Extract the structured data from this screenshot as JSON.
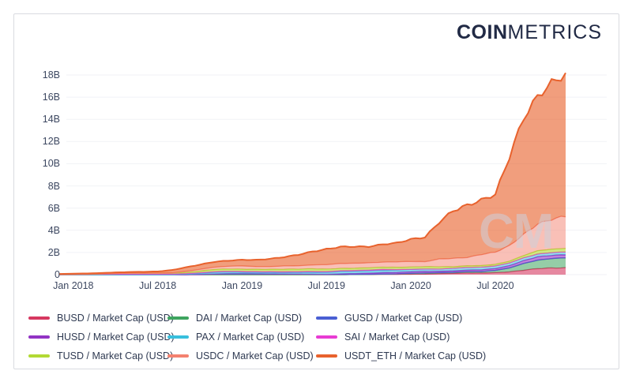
{
  "logo": {
    "bold": "COIN",
    "light": "METRICS"
  },
  "watermark_text": "CM",
  "colors": {
    "axis_text": "#3d4861",
    "grid": "#f1f2f6",
    "frame_border": "#d9dbe0",
    "logo_text": "#212a45",
    "legend_text": "#2f3a52"
  },
  "chart_data": {
    "type": "area",
    "stacked": true,
    "title": "",
    "x_start": "Dec 2017",
    "x_end": "Dec 2020",
    "x_unit": "month",
    "x_tick_labels": [
      "Jan 2018",
      "Jul 2018",
      "Jan 2019",
      "Jul 2019",
      "Jan 2020",
      "Jul 2020"
    ],
    "x_tick_month_indices": [
      1,
      7,
      13,
      19,
      25,
      31
    ],
    "y_tick_labels": [
      "0",
      "2B",
      "4B",
      "6B",
      "8B",
      "10B",
      "12B",
      "14B",
      "16B",
      "18B"
    ],
    "y_tick_values": [
      0,
      2,
      4,
      6,
      8,
      10,
      12,
      14,
      16,
      18
    ],
    "ylim": [
      0,
      18.5
    ],
    "value_unit": "USD billions",
    "grid": "horizontal",
    "legend_position": "bottom",
    "stack_order_bottom_to_top": [
      "BUSD",
      "DAI",
      "GUSD",
      "HUSD",
      "PAX",
      "SAI",
      "TUSD",
      "USDC",
      "USDT_ETH"
    ],
    "legend_display_order": [
      "BUSD",
      "HUSD",
      "TUSD",
      "DAI",
      "PAX",
      "USDC",
      "GUSD",
      "SAI",
      "USDT_ETH"
    ],
    "series": {
      "BUSD": {
        "label": "BUSD / Market Cap (USD)",
        "color": "#d63860",
        "fill_opacity": 0.6,
        "values": [
          0,
          0,
          0,
          0,
          0,
          0,
          0,
          0,
          0,
          0,
          0,
          0,
          0,
          0,
          0,
          0,
          0,
          0,
          0,
          0,
          0,
          0.01,
          0.02,
          0.03,
          0.03,
          0.04,
          0.05,
          0.09,
          0.12,
          0.15,
          0.15,
          0.18,
          0.25,
          0.4,
          0.55,
          0.6,
          0.62
        ]
      },
      "DAI": {
        "label": "DAI / Market Cap (USD)",
        "color": "#3ea45f",
        "fill_opacity": 0.55,
        "values": [
          0,
          0,
          0,
          0,
          0,
          0,
          0,
          0,
          0,
          0,
          0,
          0,
          0,
          0,
          0,
          0,
          0,
          0,
          0,
          0,
          0,
          0,
          0,
          0.02,
          0.04,
          0.08,
          0.1,
          0.09,
          0.09,
          0.12,
          0.13,
          0.2,
          0.35,
          0.6,
          0.75,
          0.85,
          0.9
        ]
      },
      "GUSD": {
        "label": "GUSD / Market Cap (USD)",
        "color": "#4a5fd3",
        "fill_opacity": 0.6,
        "values": [
          0,
          0,
          0,
          0,
          0,
          0,
          0,
          0,
          0,
          0,
          0.02,
          0.06,
          0.09,
          0.09,
          0.08,
          0.07,
          0.06,
          0.05,
          0.04,
          0.03,
          0.03,
          0.02,
          0.02,
          0.01,
          0.01,
          0.01,
          0.01,
          0.01,
          0.01,
          0.01,
          0.01,
          0.01,
          0.01,
          0.01,
          0.01,
          0.01,
          0.01
        ]
      },
      "HUSD": {
        "label": "HUSD / Market Cap (USD)",
        "color": "#9233c4",
        "fill_opacity": 0.6,
        "values": [
          0,
          0,
          0,
          0,
          0,
          0,
          0,
          0,
          0,
          0,
          0,
          0,
          0,
          0,
          0,
          0,
          0,
          0,
          0,
          0,
          0.05,
          0.07,
          0.1,
          0.12,
          0.13,
          0.14,
          0.15,
          0.12,
          0.12,
          0.14,
          0.15,
          0.16,
          0.2,
          0.25,
          0.3,
          0.28,
          0.27
        ]
      },
      "PAX": {
        "label": "PAX / Market Cap (USD)",
        "color": "#38bfdd",
        "fill_opacity": 0.55,
        "values": [
          0,
          0,
          0,
          0,
          0,
          0,
          0,
          0,
          0,
          0.05,
          0.1,
          0.15,
          0.15,
          0.12,
          0.12,
          0.12,
          0.12,
          0.15,
          0.17,
          0.17,
          0.2,
          0.2,
          0.2,
          0.2,
          0.2,
          0.2,
          0.2,
          0.2,
          0.24,
          0.24,
          0.24,
          0.24,
          0.25,
          0.25,
          0.25,
          0.25,
          0.25
        ]
      },
      "SAI": {
        "label": "SAI / Market Cap (USD)",
        "color": "#e83bd3",
        "fill_opacity": 0.55,
        "values": [
          0.02,
          0.03,
          0.04,
          0.05,
          0.06,
          0.06,
          0.06,
          0.06,
          0.06,
          0.06,
          0.06,
          0.06,
          0.07,
          0.08,
          0.08,
          0.09,
          0.09,
          0.08,
          0.08,
          0.08,
          0.08,
          0.08,
          0.08,
          0.1,
          0.05,
          0.02,
          0.01,
          0,
          0,
          0,
          0,
          0,
          0,
          0,
          0,
          0,
          0
        ]
      },
      "TUSD": {
        "label": "TUSD / Market Cap (USD)",
        "color": "#b2d934",
        "fill_opacity": 0.6,
        "values": [
          0,
          0,
          0,
          0.02,
          0.05,
          0.08,
          0.08,
          0.08,
          0.1,
          0.1,
          0.15,
          0.2,
          0.2,
          0.2,
          0.2,
          0.2,
          0.22,
          0.22,
          0.24,
          0.22,
          0.2,
          0.2,
          0.2,
          0.2,
          0.2,
          0.2,
          0.2,
          0.2,
          0.14,
          0.14,
          0.14,
          0.14,
          0.15,
          0.2,
          0.3,
          0.3,
          0.32
        ]
      },
      "USDC": {
        "label": "USDC / Market Cap (USD)",
        "color": "#f4816f",
        "fill_opacity": 0.5,
        "values": [
          0,
          0,
          0,
          0,
          0,
          0,
          0,
          0,
          0,
          0.1,
          0.15,
          0.2,
          0.25,
          0.3,
          0.25,
          0.25,
          0.3,
          0.3,
          0.35,
          0.4,
          0.45,
          0.45,
          0.45,
          0.45,
          0.5,
          0.5,
          0.45,
          0.7,
          0.75,
          0.75,
          1.0,
          1.1,
          1.4,
          1.9,
          2.4,
          2.7,
          2.9
        ]
      },
      "USDT_ETH": {
        "label": "USDT_ETH / Market Cap (USD)",
        "color": "#e8622d",
        "fill_opacity": 0.62,
        "values": [
          0.04,
          0.06,
          0.07,
          0.08,
          0.09,
          0.1,
          0.12,
          0.15,
          0.25,
          0.35,
          0.42,
          0.48,
          0.5,
          0.55,
          0.6,
          0.7,
          0.8,
          1.0,
          1.2,
          1.4,
          1.5,
          1.5,
          1.45,
          1.6,
          1.7,
          2.0,
          2.2,
          3.3,
          4.3,
          4.7,
          4.9,
          5.2,
          8.0,
          10.5,
          11.5,
          12.3,
          12.8
        ]
      }
    }
  }
}
